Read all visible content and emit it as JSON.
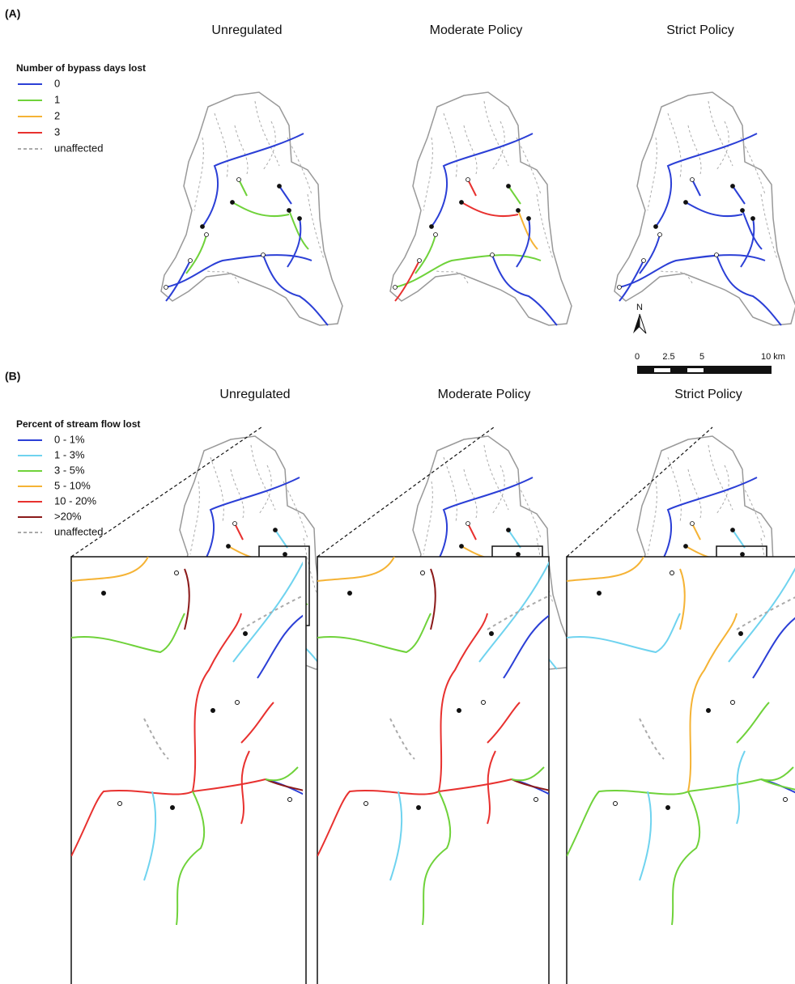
{
  "panel_a": {
    "label": "(A)",
    "titles": [
      "Unregulated",
      "Moderate Policy",
      "Strict Policy"
    ],
    "legend": {
      "title": "Number of bypass days lost",
      "items": [
        {
          "label": "0",
          "color": "#2b3fd6"
        },
        {
          "label": "1",
          "color": "#6fd23a"
        },
        {
          "label": "2",
          "color": "#f5b335"
        },
        {
          "label": "3",
          "color": "#e8312f"
        },
        {
          "label": "unaffected",
          "color": "#aaaaaa"
        }
      ]
    }
  },
  "north_arrow": "N",
  "scale_bar": [
    "0",
    "2.5",
    "5",
    "10 km"
  ],
  "panel_b": {
    "label": "(B)",
    "titles": [
      "Unregulated",
      "Moderate Policy",
      "Strict Policy"
    ],
    "legend": {
      "title": "Percent of stream flow lost",
      "items": [
        {
          "label": "0 - 1%",
          "color": "#2b3fd6"
        },
        {
          "label": "1 - 3%",
          "color": "#6fd3ef"
        },
        {
          "label": "3 - 5%",
          "color": "#6fd23a"
        },
        {
          "label": "5 - 10%",
          "color": "#f5b335"
        },
        {
          "label": "10 - 20%",
          "color": "#e8312f"
        },
        {
          "label": ">20%",
          "color": "#8b1a1a"
        },
        {
          "label": "unaffected",
          "color": "#aaaaaa"
        }
      ]
    }
  }
}
